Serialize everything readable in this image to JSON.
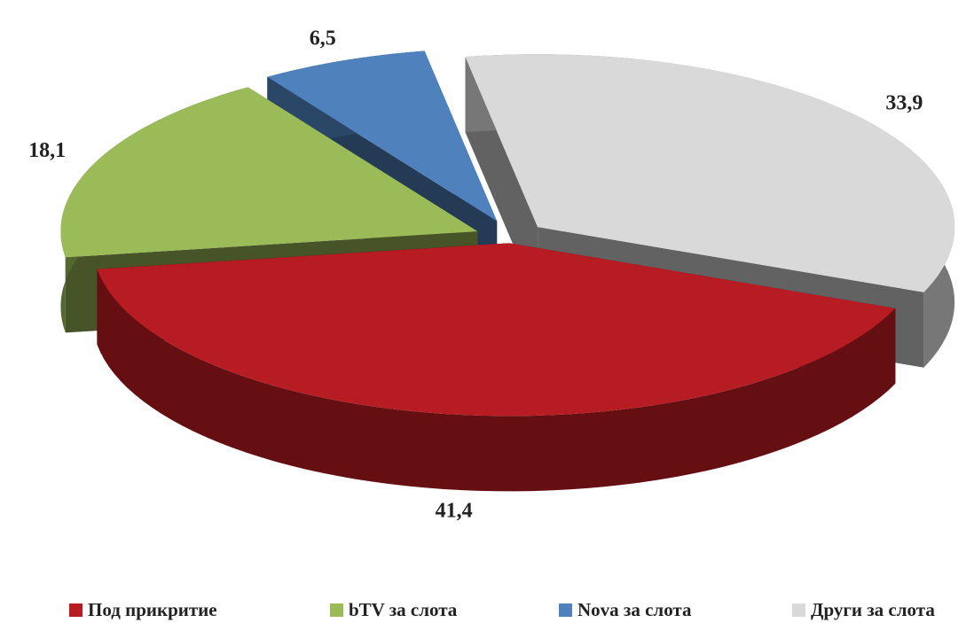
{
  "chart_data": {
    "type": "pie3d",
    "categories": [
      "Под прикритие",
      "bTV за слота",
      "Nova за слота",
      "Други за слота"
    ],
    "values": [
      41.4,
      18.1,
      6.5,
      33.9
    ],
    "value_labels": [
      "41,4",
      "18,1",
      "6,5",
      "33,9"
    ],
    "colors": [
      "#b71c23",
      "#9bbb59",
      "#4f81bd",
      "#d9d9d9"
    ],
    "legend": "bottom"
  }
}
